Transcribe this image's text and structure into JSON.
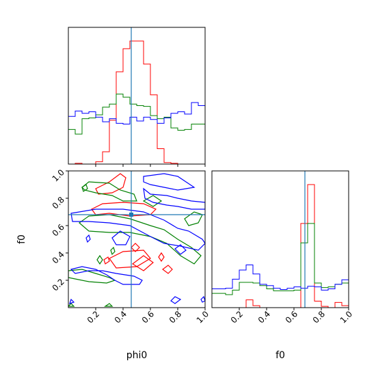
{
  "chart_data": [
    {
      "panel": "phi0-marginal",
      "type": "histogram",
      "x_param": "phi0",
      "xlim": [
        0,
        1
      ],
      "bins": 20,
      "truth": 0.46,
      "series": [
        {
          "color": "#ff0000",
          "counts": [
            0,
            0.01,
            0,
            0,
            0.03,
            0.16,
            0.57,
            1.2,
            1.5,
            1.6,
            1.6,
            1.3,
            0.9,
            0.2,
            0.02,
            0.01,
            0,
            0,
            0,
            0
          ]
        },
        {
          "color": "#008000",
          "counts": [
            0.45,
            0.39,
            0.59,
            0.6,
            0.64,
            0.74,
            0.78,
            0.91,
            0.87,
            0.78,
            0.76,
            0.75,
            0.63,
            0.59,
            0.61,
            0.47,
            0.44,
            0.45,
            0.52,
            0.52
          ]
        },
        {
          "color": "#0000ff",
          "counts": [
            0.62,
            0.69,
            0.66,
            0.68,
            0.61,
            0.55,
            0.59,
            0.53,
            0.52,
            0.61,
            0.56,
            0.61,
            0.58,
            0.53,
            0.6,
            0.66,
            0.68,
            0.65,
            0.8,
            0.76
          ]
        }
      ]
    },
    {
      "panel": "f0-marginal",
      "type": "histogram",
      "x_param": "f0",
      "xlim": [
        0,
        1
      ],
      "bins": 20,
      "truth": 0.68,
      "series": [
        {
          "color": "#ff0000",
          "counts": [
            0,
            0,
            0,
            0,
            0,
            0.12,
            0.03,
            0,
            0,
            0,
            0,
            0,
            0,
            1.3,
            1.9,
            0.1,
            0.02,
            0,
            0.08,
            0.03
          ]
        },
        {
          "color": "#008000",
          "counts": [
            0.22,
            0.22,
            0.2,
            0.27,
            0.39,
            0.39,
            0.38,
            0.34,
            0.29,
            0.26,
            0.26,
            0.26,
            0.27,
            1.0,
            1.3,
            0.38,
            0.31,
            0.32,
            0.36,
            0.38
          ]
        },
        {
          "color": "#0000ff",
          "counts": [
            0.29,
            0.29,
            0.3,
            0.44,
            0.58,
            0.66,
            0.52,
            0.36,
            0.34,
            0.3,
            0.28,
            0.3,
            0.32,
            0.3,
            0.33,
            0.32,
            0.27,
            0.29,
            0.36,
            0.43
          ]
        }
      ]
    },
    {
      "panel": "phi0-f0-joint",
      "type": "contour",
      "x_param": "phi0",
      "y_param": "f0",
      "xlim": [
        0,
        1
      ],
      "ylim": [
        0,
        1
      ],
      "truth": [
        0.46,
        0.68
      ],
      "series": [
        {
          "color": "#ff0000",
          "contours": [
            [
              [
                0.2,
                0.87
              ],
              [
                0.3,
                0.92
              ],
              [
                0.38,
                0.98
              ],
              [
                0.42,
                0.95
              ],
              [
                0.4,
                0.88
              ],
              [
                0.32,
                0.84
              ],
              [
                0.22,
                0.83
              ]
            ],
            [
              [
                0.17,
                0.72
              ],
              [
                0.25,
                0.76
              ],
              [
                0.4,
                0.77
              ],
              [
                0.55,
                0.76
              ],
              [
                0.64,
                0.72
              ],
              [
                0.6,
                0.68
              ],
              [
                0.45,
                0.67
              ],
              [
                0.3,
                0.69
              ],
              [
                0.2,
                0.68
              ]
            ],
            [
              [
                0.3,
                0.36
              ],
              [
                0.4,
                0.41
              ],
              [
                0.55,
                0.42
              ],
              [
                0.6,
                0.36
              ],
              [
                0.5,
                0.3
              ],
              [
                0.35,
                0.29
              ]
            ],
            [
              [
                0.47,
                0.32
              ],
              [
                0.55,
                0.38
              ],
              [
                0.62,
                0.33
              ],
              [
                0.55,
                0.27
              ]
            ],
            [
              [
                0.46,
                0.44
              ],
              [
                0.49,
                0.47
              ],
              [
                0.52,
                0.44
              ],
              [
                0.49,
                0.41
              ]
            ],
            [
              [
                0.66,
                0.37
              ],
              [
                0.68,
                0.4
              ],
              [
                0.7,
                0.37
              ],
              [
                0.68,
                0.34
              ]
            ],
            [
              [
                0.69,
                0.28
              ],
              [
                0.73,
                0.31
              ],
              [
                0.76,
                0.28
              ],
              [
                0.73,
                0.25
              ]
            ],
            [
              [
                0.26,
                0.35
              ],
              [
                0.29,
                0.37
              ],
              [
                0.3,
                0.34
              ],
              [
                0.27,
                0.32
              ]
            ]
          ]
        },
        {
          "color": "#008000",
          "contours": [
            [
              [
                0.0,
                0.27
              ],
              [
                0.1,
                0.28
              ],
              [
                0.2,
                0.25
              ],
              [
                0.3,
                0.22
              ],
              [
                0.34,
                0.2
              ],
              [
                0.28,
                0.18
              ],
              [
                0.15,
                0.19
              ],
              [
                0.05,
                0.21
              ],
              [
                0.0,
                0.22
              ]
            ],
            [
              [
                0.1,
                0.88
              ],
              [
                0.15,
                0.92
              ],
              [
                0.3,
                0.91
              ],
              [
                0.38,
                0.86
              ],
              [
                0.48,
                0.83
              ],
              [
                0.5,
                0.78
              ],
              [
                0.4,
                0.78
              ],
              [
                0.32,
                0.82
              ],
              [
                0.2,
                0.84
              ],
              [
                0.12,
                0.86
              ]
            ],
            [
              [
                0.08,
                0.62
              ],
              [
                0.15,
                0.67
              ],
              [
                0.3,
                0.68
              ],
              [
                0.45,
                0.65
              ],
              [
                0.6,
                0.6
              ],
              [
                0.7,
                0.57
              ],
              [
                0.8,
                0.5
              ],
              [
                0.9,
                0.44
              ],
              [
                0.97,
                0.38
              ],
              [
                0.92,
                0.32
              ],
              [
                0.82,
                0.38
              ],
              [
                0.72,
                0.47
              ],
              [
                0.6,
                0.52
              ],
              [
                0.45,
                0.55
              ],
              [
                0.3,
                0.55
              ],
              [
                0.15,
                0.56
              ]
            ],
            [
              [
                0.55,
                0.78
              ],
              [
                0.62,
                0.82
              ],
              [
                0.68,
                0.78
              ],
              [
                0.62,
                0.74
              ]
            ],
            [
              [
                0.85,
                0.65
              ],
              [
                0.92,
                0.7
              ],
              [
                0.98,
                0.68
              ],
              [
                0.95,
                0.62
              ],
              [
                0.88,
                0.6
              ]
            ],
            [
              [
                0.1,
                0.88
              ],
              [
                0.13,
                0.9
              ],
              [
                0.14,
                0.87
              ],
              [
                0.11,
                0.85
              ]
            ],
            [
              [
                0.21,
                0.35
              ],
              [
                0.23,
                0.38
              ],
              [
                0.25,
                0.35
              ],
              [
                0.23,
                0.32
              ]
            ],
            [
              [
                0.31,
                0.42
              ],
              [
                0.33,
                0.44
              ],
              [
                0.34,
                0.41
              ],
              [
                0.32,
                0.39
              ]
            ],
            [
              [
                0.27,
                0.01
              ],
              [
                0.3,
                0.03
              ],
              [
                0.32,
                0.01
              ]
            ],
            [
              [
                0.0,
                0.01
              ],
              [
                0.02,
                0.03
              ],
              [
                0.04,
                0.01
              ]
            ]
          ]
        },
        {
          "color": "#0000ff",
          "contours": [
            [
              [
                0.55,
                0.96
              ],
              [
                0.7,
                0.98
              ],
              [
                0.8,
                0.96
              ],
              [
                0.86,
                0.92
              ],
              [
                0.92,
                0.88
              ],
              [
                0.8,
                0.86
              ],
              [
                0.7,
                0.88
              ],
              [
                0.6,
                0.9
              ],
              [
                0.55,
                0.92
              ]
            ],
            [
              [
                0.55,
                0.87
              ],
              [
                0.6,
                0.83
              ],
              [
                0.72,
                0.82
              ],
              [
                0.8,
                0.8
              ],
              [
                0.9,
                0.78
              ],
              [
                1.0,
                0.77
              ],
              [
                1.0,
                0.72
              ],
              [
                0.9,
                0.72
              ],
              [
                0.8,
                0.74
              ],
              [
                0.72,
                0.75
              ],
              [
                0.62,
                0.77
              ],
              [
                0.56,
                0.8
              ]
            ],
            [
              [
                0.02,
                0.69
              ],
              [
                0.2,
                0.72
              ],
              [
                0.4,
                0.72
              ],
              [
                0.55,
                0.7
              ],
              [
                0.7,
                0.64
              ],
              [
                0.8,
                0.58
              ],
              [
                0.88,
                0.56
              ],
              [
                0.98,
                0.5
              ],
              [
                1.0,
                0.47
              ],
              [
                0.95,
                0.42
              ],
              [
                0.82,
                0.45
              ],
              [
                0.7,
                0.47
              ],
              [
                0.6,
                0.52
              ],
              [
                0.45,
                0.6
              ],
              [
                0.3,
                0.62
              ],
              [
                0.15,
                0.63
              ],
              [
                0.03,
                0.63
              ]
            ],
            [
              [
                0.02,
                0.28
              ],
              [
                0.1,
                0.3
              ],
              [
                0.2,
                0.28
              ],
              [
                0.28,
                0.24
              ],
              [
                0.34,
                0.2
              ],
              [
                0.4,
                0.17
              ],
              [
                0.52,
                0.17
              ],
              [
                0.54,
                0.2
              ],
              [
                0.48,
                0.23
              ],
              [
                0.35,
                0.25
              ],
              [
                0.25,
                0.27
              ],
              [
                0.15,
                0.27
              ],
              [
                0.05,
                0.25
              ]
            ],
            [
              [
                0.32,
                0.51
              ],
              [
                0.38,
                0.56
              ],
              [
                0.45,
                0.52
              ],
              [
                0.42,
                0.46
              ],
              [
                0.35,
                0.46
              ]
            ],
            [
              [
                0.78,
                0.43
              ],
              [
                0.82,
                0.46
              ],
              [
                0.86,
                0.42
              ],
              [
                0.82,
                0.39
              ]
            ],
            [
              [
                0.13,
                0.51
              ],
              [
                0.15,
                0.53
              ],
              [
                0.16,
                0.5
              ],
              [
                0.14,
                0.48
              ]
            ],
            [
              [
                0.75,
                0.05
              ],
              [
                0.78,
                0.08
              ],
              [
                0.82,
                0.06
              ],
              [
                0.78,
                0.03
              ]
            ],
            [
              [
                0.97,
                0.06
              ],
              [
                0.99,
                0.08
              ],
              [
                1.0,
                0.05
              ],
              [
                0.98,
                0.04
              ]
            ],
            [
              [
                0.01,
                0.03
              ],
              [
                0.02,
                0.06
              ],
              [
                0.04,
                0.04
              ]
            ]
          ]
        }
      ]
    }
  ],
  "axes": {
    "x_bottom_left_label": "phi0",
    "x_bottom_right_label": "f0",
    "y_left_label": "f0",
    "x_ticks": [
      "0.2",
      "0.4",
      "0.6",
      "0.8",
      "1.0"
    ],
    "y_ticks": [
      "0.2",
      "0.4",
      "0.6",
      "0.8",
      "1.0"
    ],
    "truth_line_color": "#1f77b4"
  }
}
